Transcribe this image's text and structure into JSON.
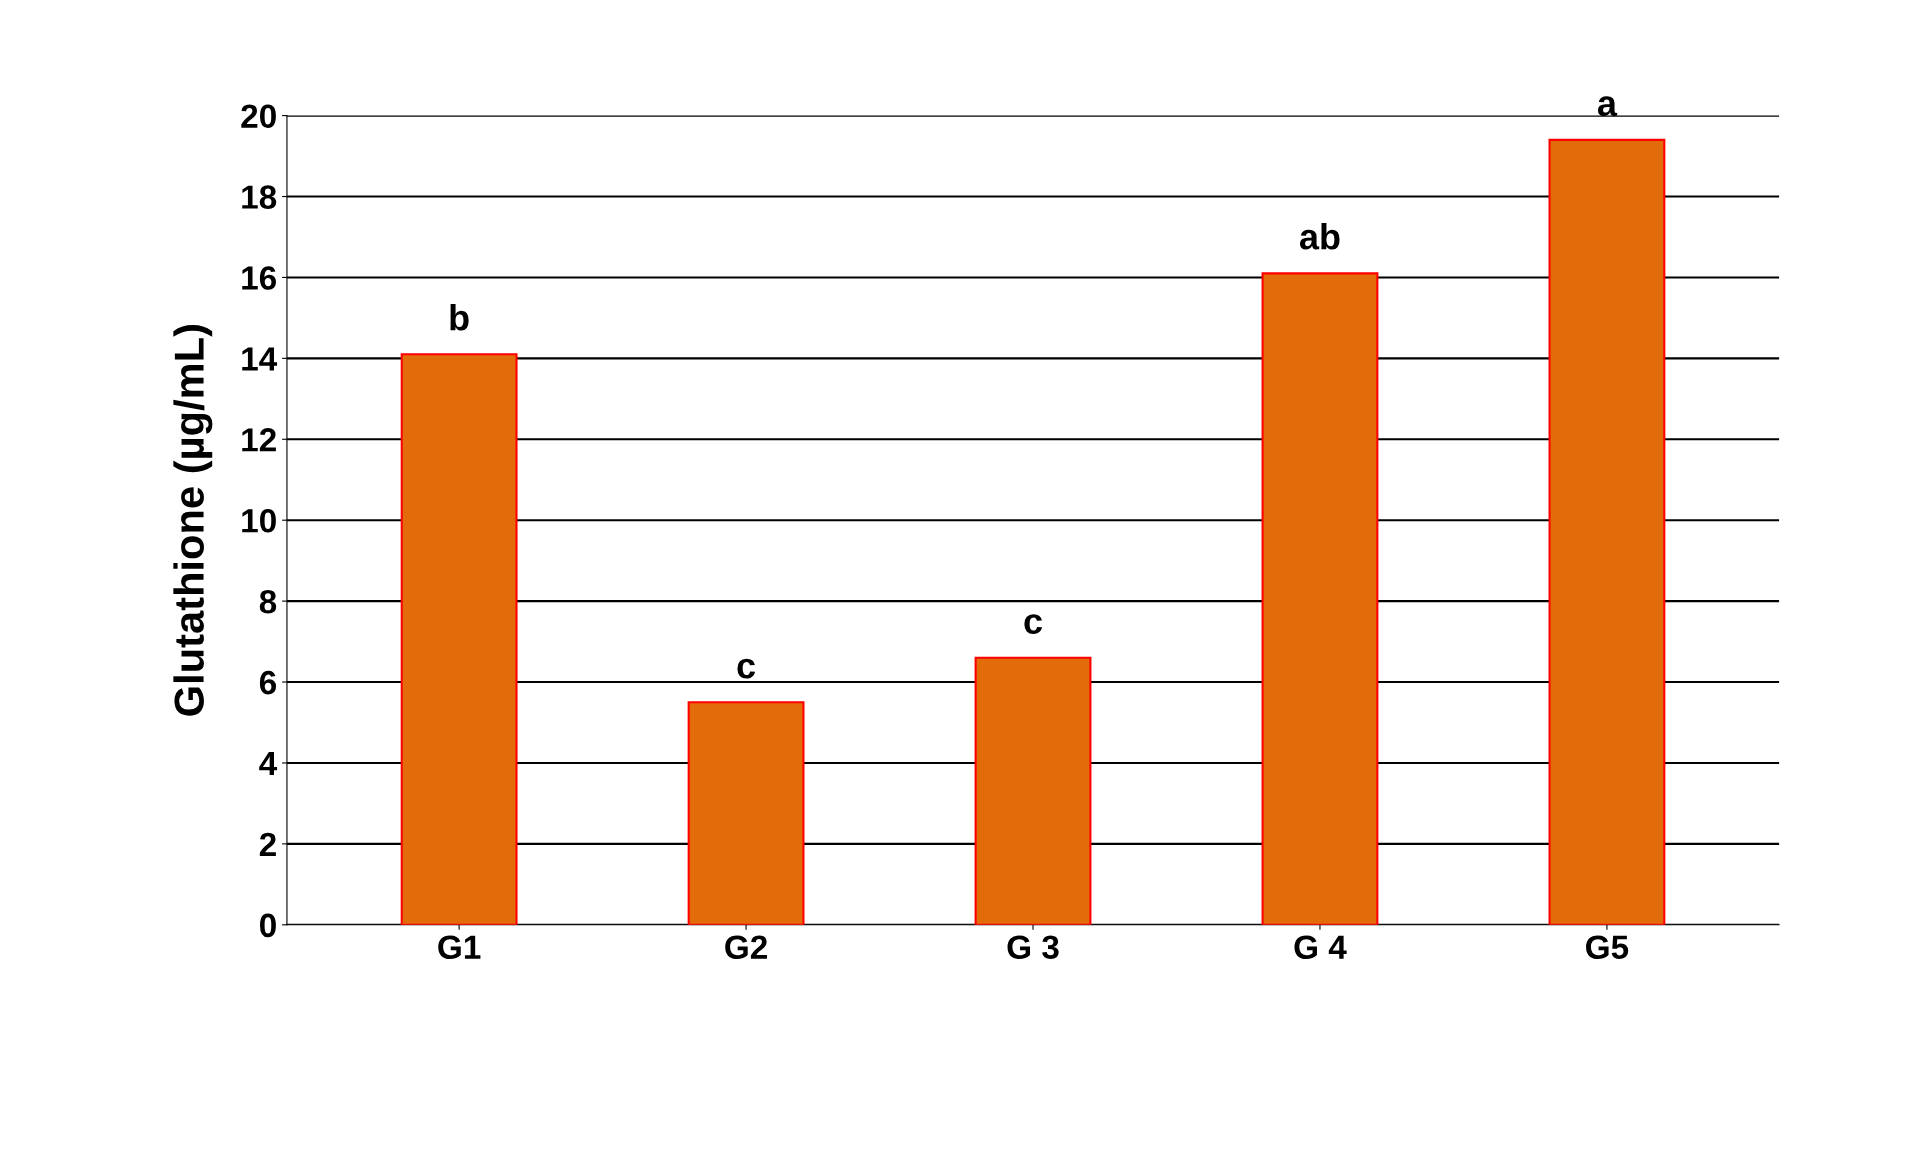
{
  "chart_data": {
    "type": "bar",
    "ylabel": "Glutathione (µg/mL)",
    "categories": [
      "G1",
      "G2",
      "G 3",
      "G 4",
      "G5"
    ],
    "values": [
      14.1,
      5.5,
      6.6,
      16.1,
      19.4
    ],
    "color": "#e36c0a",
    "ylim": [
      0,
      20
    ],
    "yticks": [
      0,
      2,
      4,
      6,
      8,
      10,
      12,
      14,
      16,
      18,
      20
    ],
    "grid": "y",
    "annotations": [
      {
        "text": "b",
        "x": "G1",
        "y": 14.1
      },
      {
        "text": "c",
        "x": "G2",
        "y": 5.5
      },
      {
        "text": "c",
        "x": "G 3",
        "y": 6.6
      },
      {
        "text": "ab",
        "x": "G 4",
        "y": 16.1
      },
      {
        "text": "a",
        "x": "G5",
        "y": 19.4
      }
    ]
  }
}
